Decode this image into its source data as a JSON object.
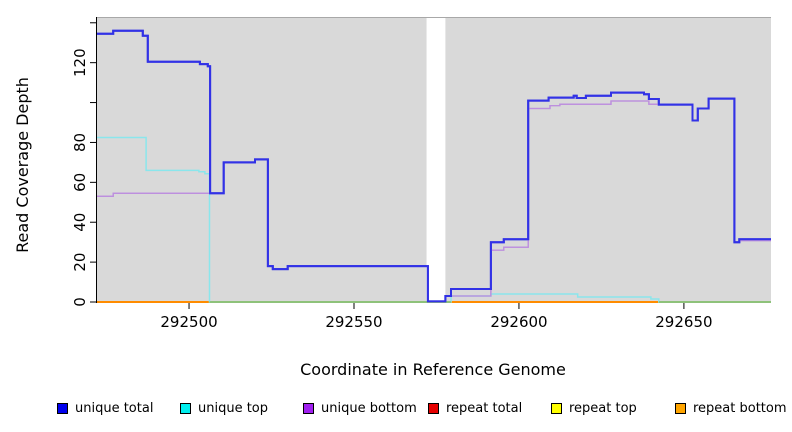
{
  "figure_title": "",
  "axes": {
    "x_title": "Coordinate in Reference Genome",
    "y_title": "Read Coverage Depth",
    "x_ticks": [
      {
        "v": 292500,
        "label": "292500"
      },
      {
        "v": 292550,
        "label": "292550"
      },
      {
        "v": 292600,
        "label": "292600"
      },
      {
        "v": 292650,
        "label": "292650"
      }
    ],
    "y_ticks": [
      {
        "v": 0,
        "label": "0"
      },
      {
        "v": 20,
        "label": "20"
      },
      {
        "v": 40,
        "label": "40"
      },
      {
        "v": 60,
        "label": "60"
      },
      {
        "v": 80,
        "label": "80"
      },
      {
        "v": 100,
        "label": ""
      },
      {
        "v": 120,
        "label": "120"
      },
      {
        "v": 140,
        "label": ""
      }
    ]
  },
  "legend": {
    "items": [
      {
        "label": "unique total",
        "color": "#0000EE"
      },
      {
        "label": "unique top",
        "color": "#00EEEE"
      },
      {
        "label": "unique bottom",
        "color": "#A020F0"
      },
      {
        "label": "repeat total",
        "color": "#E60000"
      },
      {
        "label": "repeat top",
        "color": "#FFFF00"
      },
      {
        "label": "repeat bottom",
        "color": "#FFA500"
      }
    ]
  },
  "chart_data": {
    "type": "line",
    "title": "",
    "xlabel": "Coordinate in Reference Genome",
    "ylabel": "Read Coverage Depth",
    "x_range": [
      292471.8,
      292676.4
    ],
    "y_range": [
      0,
      142.9
    ],
    "grid": false,
    "plot_background": "#D9D9D9",
    "masked_gap_x": [
      292572.0,
      292577.7
    ],
    "zero_line_overlap_segments": [
      [
        292506.2,
        292579.4
      ],
      [
        292642.4,
        292676.4
      ]
    ],
    "zero_line_overlap_color": "#7CC57C",
    "series": [
      {
        "name": "repeat total",
        "line_color": "#CC0000",
        "width": 2,
        "steps": [
          [
            292471.8,
            0
          ]
        ]
      },
      {
        "name": "repeat top",
        "line_color": "#E6E600",
        "width": 2,
        "steps": [
          [
            292471.8,
            0
          ]
        ]
      },
      {
        "name": "repeat bottom",
        "line_color": "#FF8C00",
        "width": 2,
        "steps": [
          [
            292471.8,
            0
          ]
        ]
      },
      {
        "name": "unique top",
        "line_color": "#8AE6EC",
        "width": 1.5,
        "steps": [
          [
            292471.8,
            82.5
          ],
          [
            292487,
            66
          ],
          [
            292503,
            65.3
          ],
          [
            292504.8,
            64.3
          ],
          [
            292506.2,
            0
          ],
          [
            292579.4,
            3
          ],
          [
            292591.5,
            4
          ],
          [
            292617.8,
            2.5
          ],
          [
            292640,
            1.5
          ],
          [
            292642.4,
            0
          ]
        ]
      },
      {
        "name": "unique bottom",
        "line_color": "#BD8FDE",
        "width": 1.3,
        "steps": [
          [
            292471.8,
            53
          ],
          [
            292477,
            54.5
          ],
          [
            292510.5,
            70
          ],
          [
            292520,
            71.5
          ],
          [
            292523.9,
            18
          ],
          [
            292525.4,
            16.5
          ],
          [
            292529.9,
            18
          ],
          [
            292572.4,
            0.3
          ],
          [
            292577.7,
            3
          ],
          [
            292591.5,
            26
          ],
          [
            292595.4,
            27.5
          ],
          [
            292602.8,
            97
          ],
          [
            292609.4,
            98.5
          ],
          [
            292612.4,
            99.2
          ],
          [
            292627.9,
            100.8
          ],
          [
            292639.4,
            99.2
          ],
          [
            292642.4,
            99
          ],
          [
            292652.6,
            91
          ],
          [
            292654.2,
            97
          ],
          [
            292657.5,
            102
          ],
          [
            292665.3,
            30
          ],
          [
            292666.8,
            30.8
          ]
        ]
      },
      {
        "name": "unique total",
        "line_color": "#3232E6",
        "width": 2,
        "steps": [
          [
            292471.8,
            134.5
          ],
          [
            292477,
            136
          ],
          [
            292486,
            133.5
          ],
          [
            292487.5,
            120.5
          ],
          [
            292503.3,
            119.3
          ],
          [
            292505.7,
            118.2
          ],
          [
            292506.4,
            54.5
          ],
          [
            292510.5,
            70
          ],
          [
            292520,
            71.5
          ],
          [
            292523.9,
            18
          ],
          [
            292525.4,
            16.5
          ],
          [
            292529.9,
            18
          ],
          [
            292572.4,
            0.3
          ],
          [
            292577.7,
            3
          ],
          [
            292579.4,
            6.5
          ],
          [
            292591.5,
            30
          ],
          [
            292595.4,
            31.5
          ],
          [
            292602.8,
            101
          ],
          [
            292609,
            102.5
          ],
          [
            292616.6,
            103.4
          ],
          [
            292617.5,
            102.3
          ],
          [
            292620.3,
            103.4
          ],
          [
            292627.9,
            105
          ],
          [
            292637.9,
            104.2
          ],
          [
            292639.4,
            101.8
          ],
          [
            292642.4,
            99
          ],
          [
            292652.6,
            91
          ],
          [
            292654.2,
            97
          ],
          [
            292657.5,
            102
          ],
          [
            292665.3,
            30
          ],
          [
            292666.8,
            31.5
          ]
        ]
      }
    ]
  }
}
